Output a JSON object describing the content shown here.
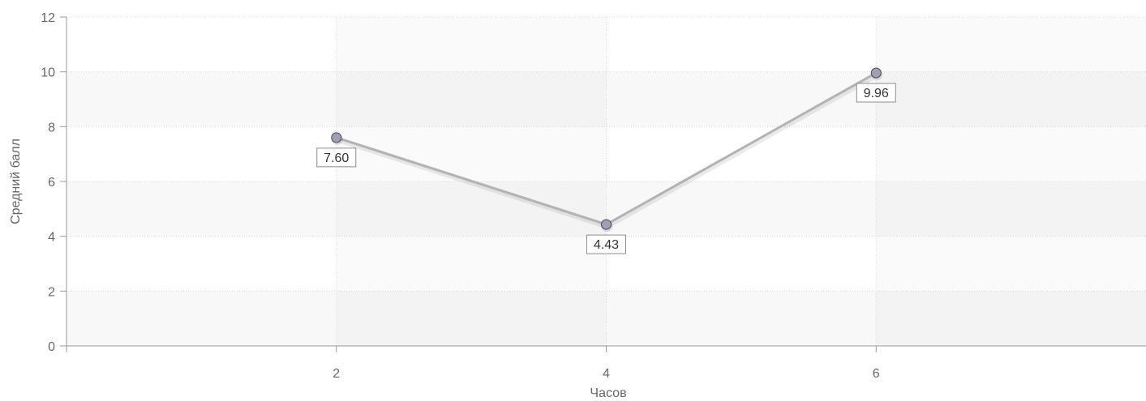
{
  "chart_data": {
    "type": "line",
    "title": "",
    "xlabel": "Часов",
    "ylabel": "Средний балл",
    "x": [
      2,
      4,
      6
    ],
    "series": [
      {
        "values": [
          7.6,
          4.43,
          9.96
        ],
        "labels": [
          "7.60",
          "4.43",
          "9.96"
        ]
      }
    ],
    "xlim": [
      0,
      8
    ],
    "ylim": [
      0,
      12
    ],
    "xticks": [
      2,
      4,
      6
    ],
    "xtick_labels": [
      "2",
      "4",
      "6"
    ],
    "yticks": [
      0,
      2,
      4,
      6,
      8,
      10,
      12
    ],
    "ytick_labels": [
      "0",
      "2",
      "4",
      "6",
      "8",
      "10",
      "12"
    ],
    "grid": true,
    "legend": "none",
    "colors": {
      "line": "#b3b3b3",
      "marker_fill": "#a0a0b4",
      "marker_stroke": "#4a4a5e",
      "band_light": "#f8f8f8",
      "band_white": "#ffffff"
    }
  }
}
